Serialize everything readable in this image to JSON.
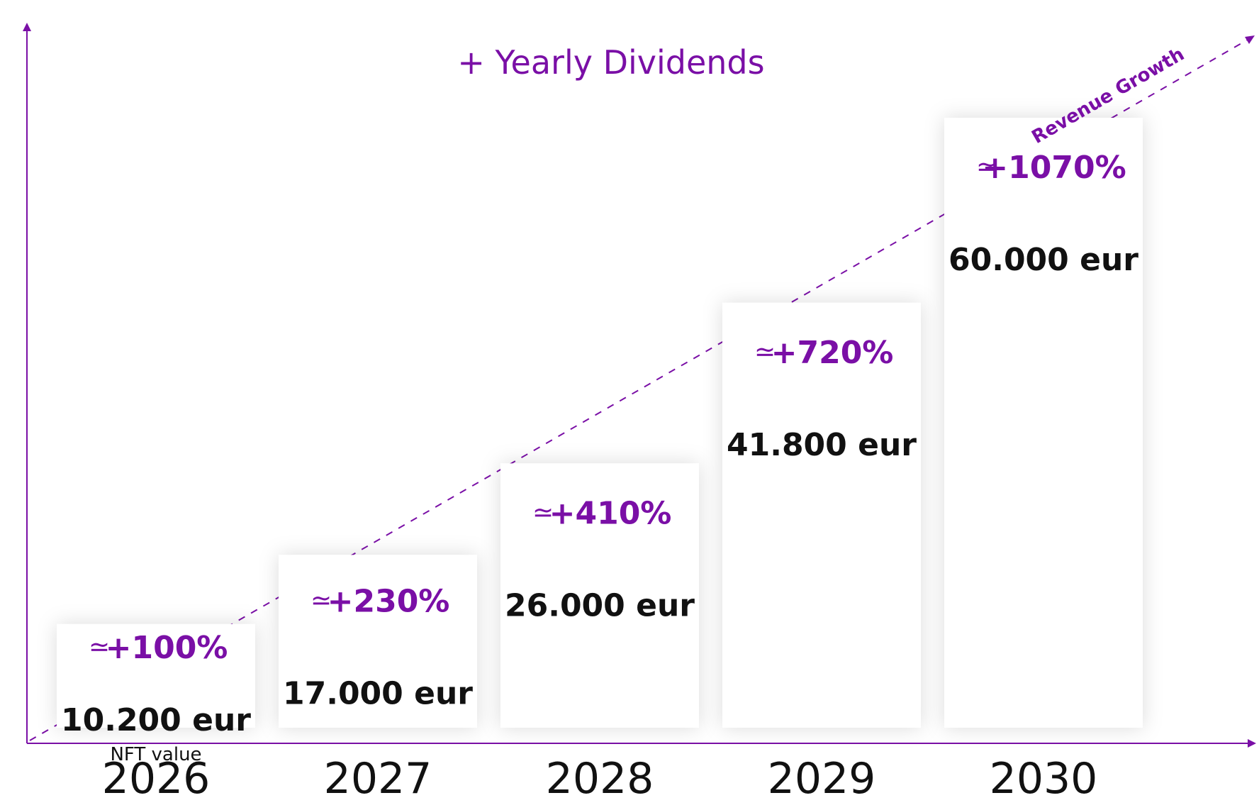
{
  "chart_data": {
    "type": "bar",
    "title": "+ Yearly Dividends",
    "categories": [
      "2026",
      "2027",
      "2028",
      "2029",
      "2030"
    ],
    "values": [
      10200,
      17000,
      26000,
      41800,
      60000
    ],
    "value_labels": [
      "10.200 eur",
      "17.000  eur",
      "26.000 eur",
      "41.800 eur",
      "60.000 eur"
    ],
    "growth_labels": [
      "+100%",
      "+230%",
      "+410%",
      "+720%",
      "+1070%"
    ],
    "approx_symbol": "≃",
    "first_bar_sublabel": "NFT value",
    "trend_label": "Revenue Growth",
    "ylim": [
      0,
      66000
    ],
    "grid": false,
    "colors": {
      "accent": "#7a0fa6",
      "bar": "#ffffff",
      "text": "#111111"
    }
  }
}
